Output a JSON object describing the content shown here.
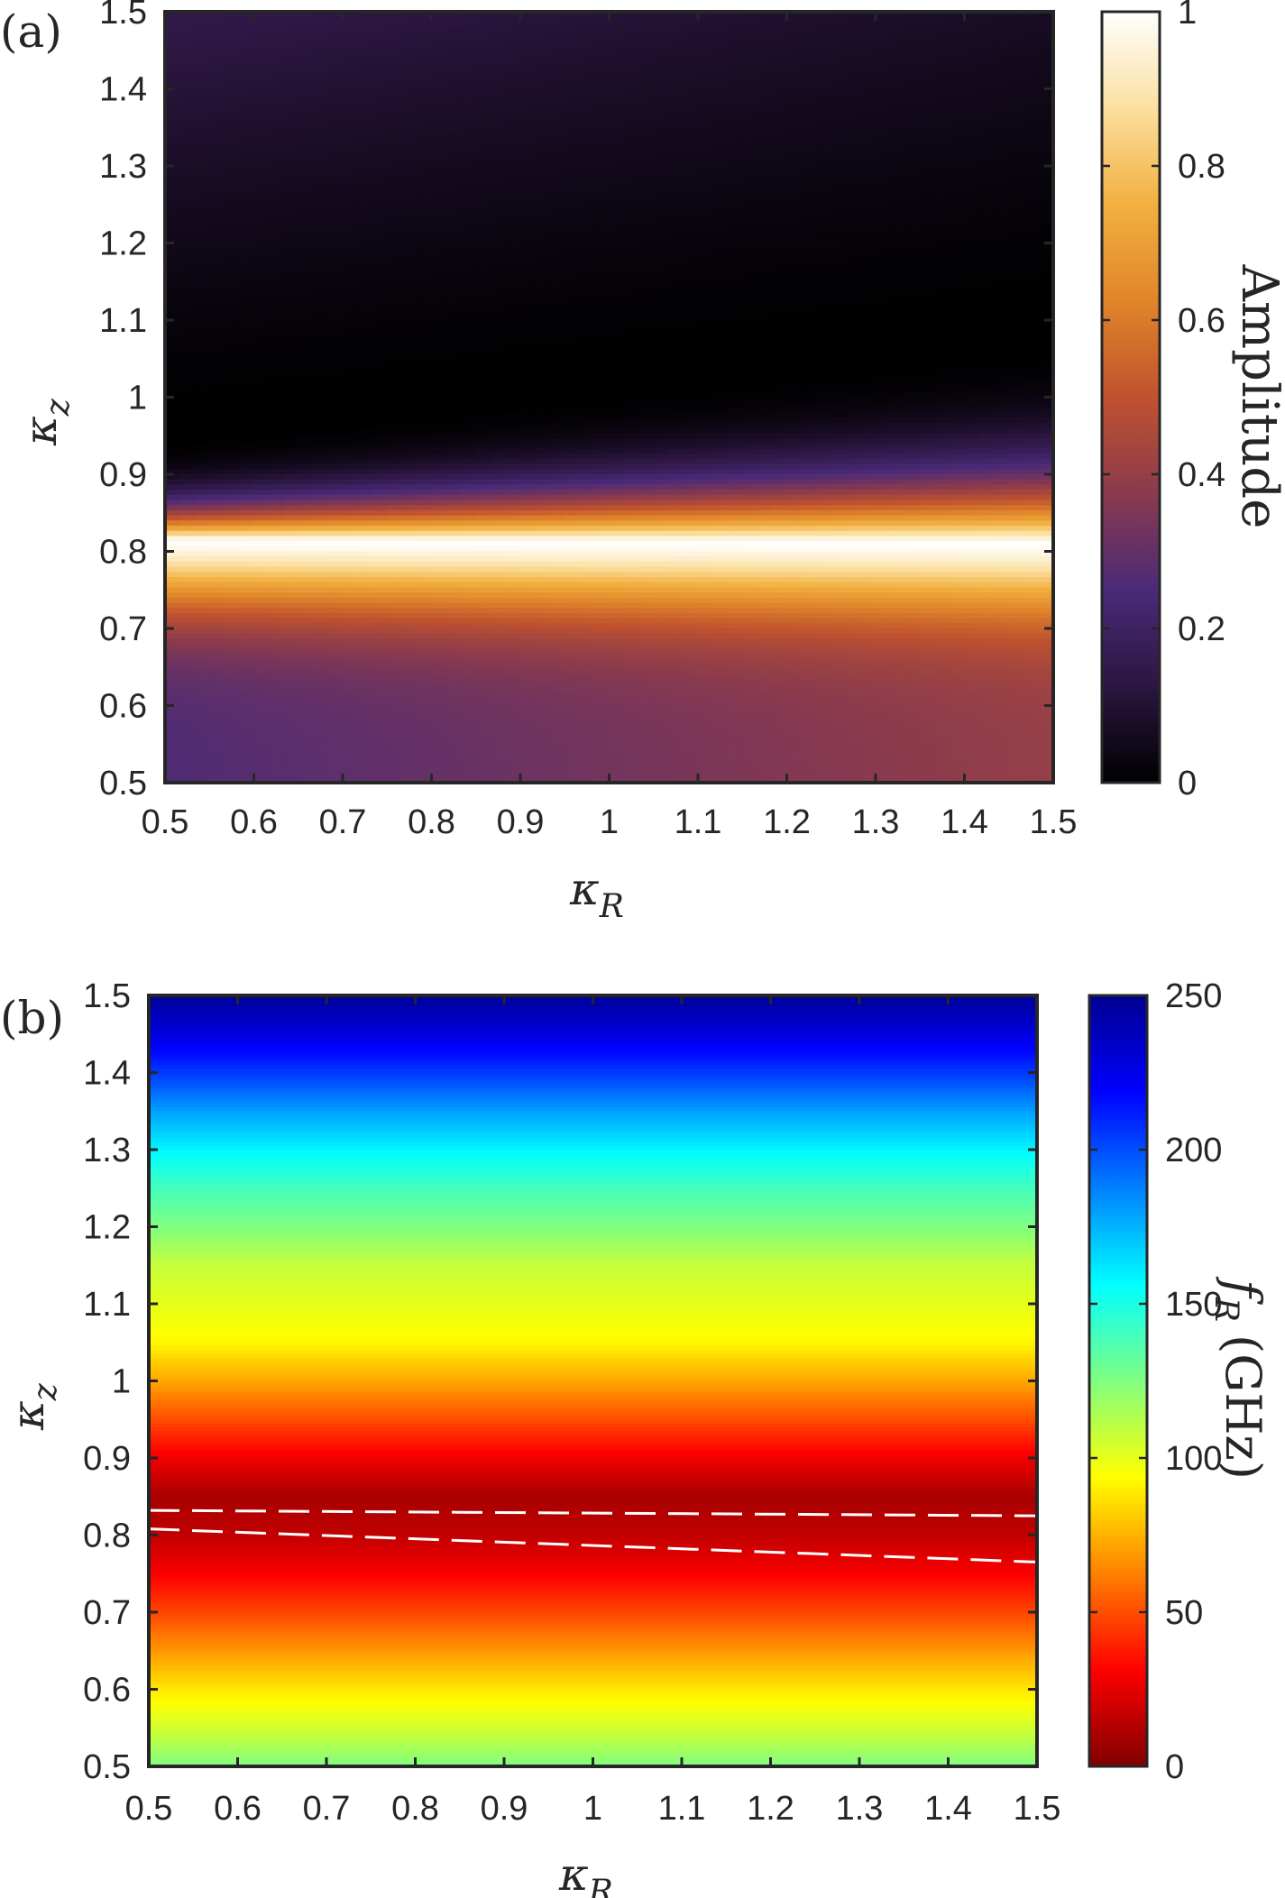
{
  "chart_data": [
    {
      "type": "heatmap",
      "panel_label": "(a)",
      "xlabel": "κR",
      "xlabel_main": "κ",
      "xlabel_sub": "R",
      "ylabel": "κz",
      "ylabel_main": "κ",
      "ylabel_sub": "z",
      "xlim": [
        0.5,
        1.5
      ],
      "ylim": [
        0.5,
        1.5
      ],
      "x_ticks": [
        "0.5",
        "0.6",
        "0.7",
        "0.8",
        "0.9",
        "1",
        "1.1",
        "1.2",
        "1.3",
        "1.4",
        "1.5"
      ],
      "y_ticks": [
        "0.5",
        "0.6",
        "0.7",
        "0.8",
        "0.9",
        "1",
        "1.1",
        "1.2",
        "1.3",
        "1.4",
        "1.5"
      ],
      "colorbar": {
        "label": "Amplitude",
        "range": [
          0,
          1
        ],
        "ticks": [
          "0",
          "0.2",
          "0.4",
          "0.6",
          "0.8",
          "1"
        ],
        "colormap": [
          "#000000",
          "#2b1640",
          "#4a2a78",
          "#8a3a4e",
          "#c0522e",
          "#e0852a",
          "#f2b040",
          "#fbe0a0",
          "#ffffff"
        ]
      },
      "field": {
        "peak_kz_at_kR_0_5": 0.815,
        "peak_kz_at_kR_1_5": 0.812,
        "peak_amplitude": 1.0,
        "zero_kz_at_kR_0_5": 0.96,
        "zero_kz_at_kR_1_5": 1.1,
        "amplitude_at_kz_1_5_kR_0_5": 0.15,
        "amplitude_at_kz_1_5_kR_1_5": 0.07,
        "amplitude_at_kz_0_5_kR_0_5": 0.26,
        "amplitude_at_kz_0_5_kR_1_5": 0.4
      }
    },
    {
      "type": "heatmap",
      "panel_label": "(b)",
      "xlabel": "κR",
      "xlabel_main": "κ",
      "xlabel_sub": "R",
      "ylabel": "κz",
      "ylabel_main": "κ",
      "ylabel_sub": "z",
      "xlim": [
        0.5,
        1.5
      ],
      "ylim": [
        0.5,
        1.5
      ],
      "x_ticks": [
        "0.5",
        "0.6",
        "0.7",
        "0.8",
        "0.9",
        "1",
        "1.1",
        "1.2",
        "1.3",
        "1.4",
        "1.5"
      ],
      "y_ticks": [
        "0.5",
        "0.6",
        "0.7",
        "0.8",
        "0.9",
        "1",
        "1.1",
        "1.2",
        "1.3",
        "1.4",
        "1.5"
      ],
      "colorbar": {
        "label": "fR (GHz)",
        "label_main": "f",
        "label_sub": "R",
        "label_unit": "(GHz)",
        "range": [
          0,
          250
        ],
        "ticks": [
          "0",
          "50",
          "100",
          "150",
          "200",
          "250"
        ],
        "colormap": [
          "#800000",
          "#ff0000",
          "#ff8000",
          "#ffff00",
          "#80ff80",
          "#00ffff",
          "#0080ff",
          "#0000ff",
          "#000090"
        ]
      },
      "profile_kz": [
        0.5,
        0.55,
        0.6,
        0.65,
        0.7,
        0.75,
        0.8,
        0.85,
        0.9,
        0.95,
        1.0,
        1.05,
        1.1,
        1.15,
        1.2,
        1.25,
        1.3,
        1.35,
        1.4,
        1.45,
        1.5
      ],
      "profile_fR": [
        125,
        105,
        88,
        68,
        48,
        30,
        16,
        10,
        28,
        50,
        72,
        92,
        100,
        108,
        125,
        140,
        158,
        180,
        205,
        228,
        248
      ],
      "dashed_lines": [
        {
          "kR": [
            0.5,
            1.5
          ],
          "kz": [
            0.832,
            0.825
          ]
        },
        {
          "kR": [
            0.5,
            1.5
          ],
          "kz": [
            0.808,
            0.765
          ]
        }
      ]
    }
  ]
}
